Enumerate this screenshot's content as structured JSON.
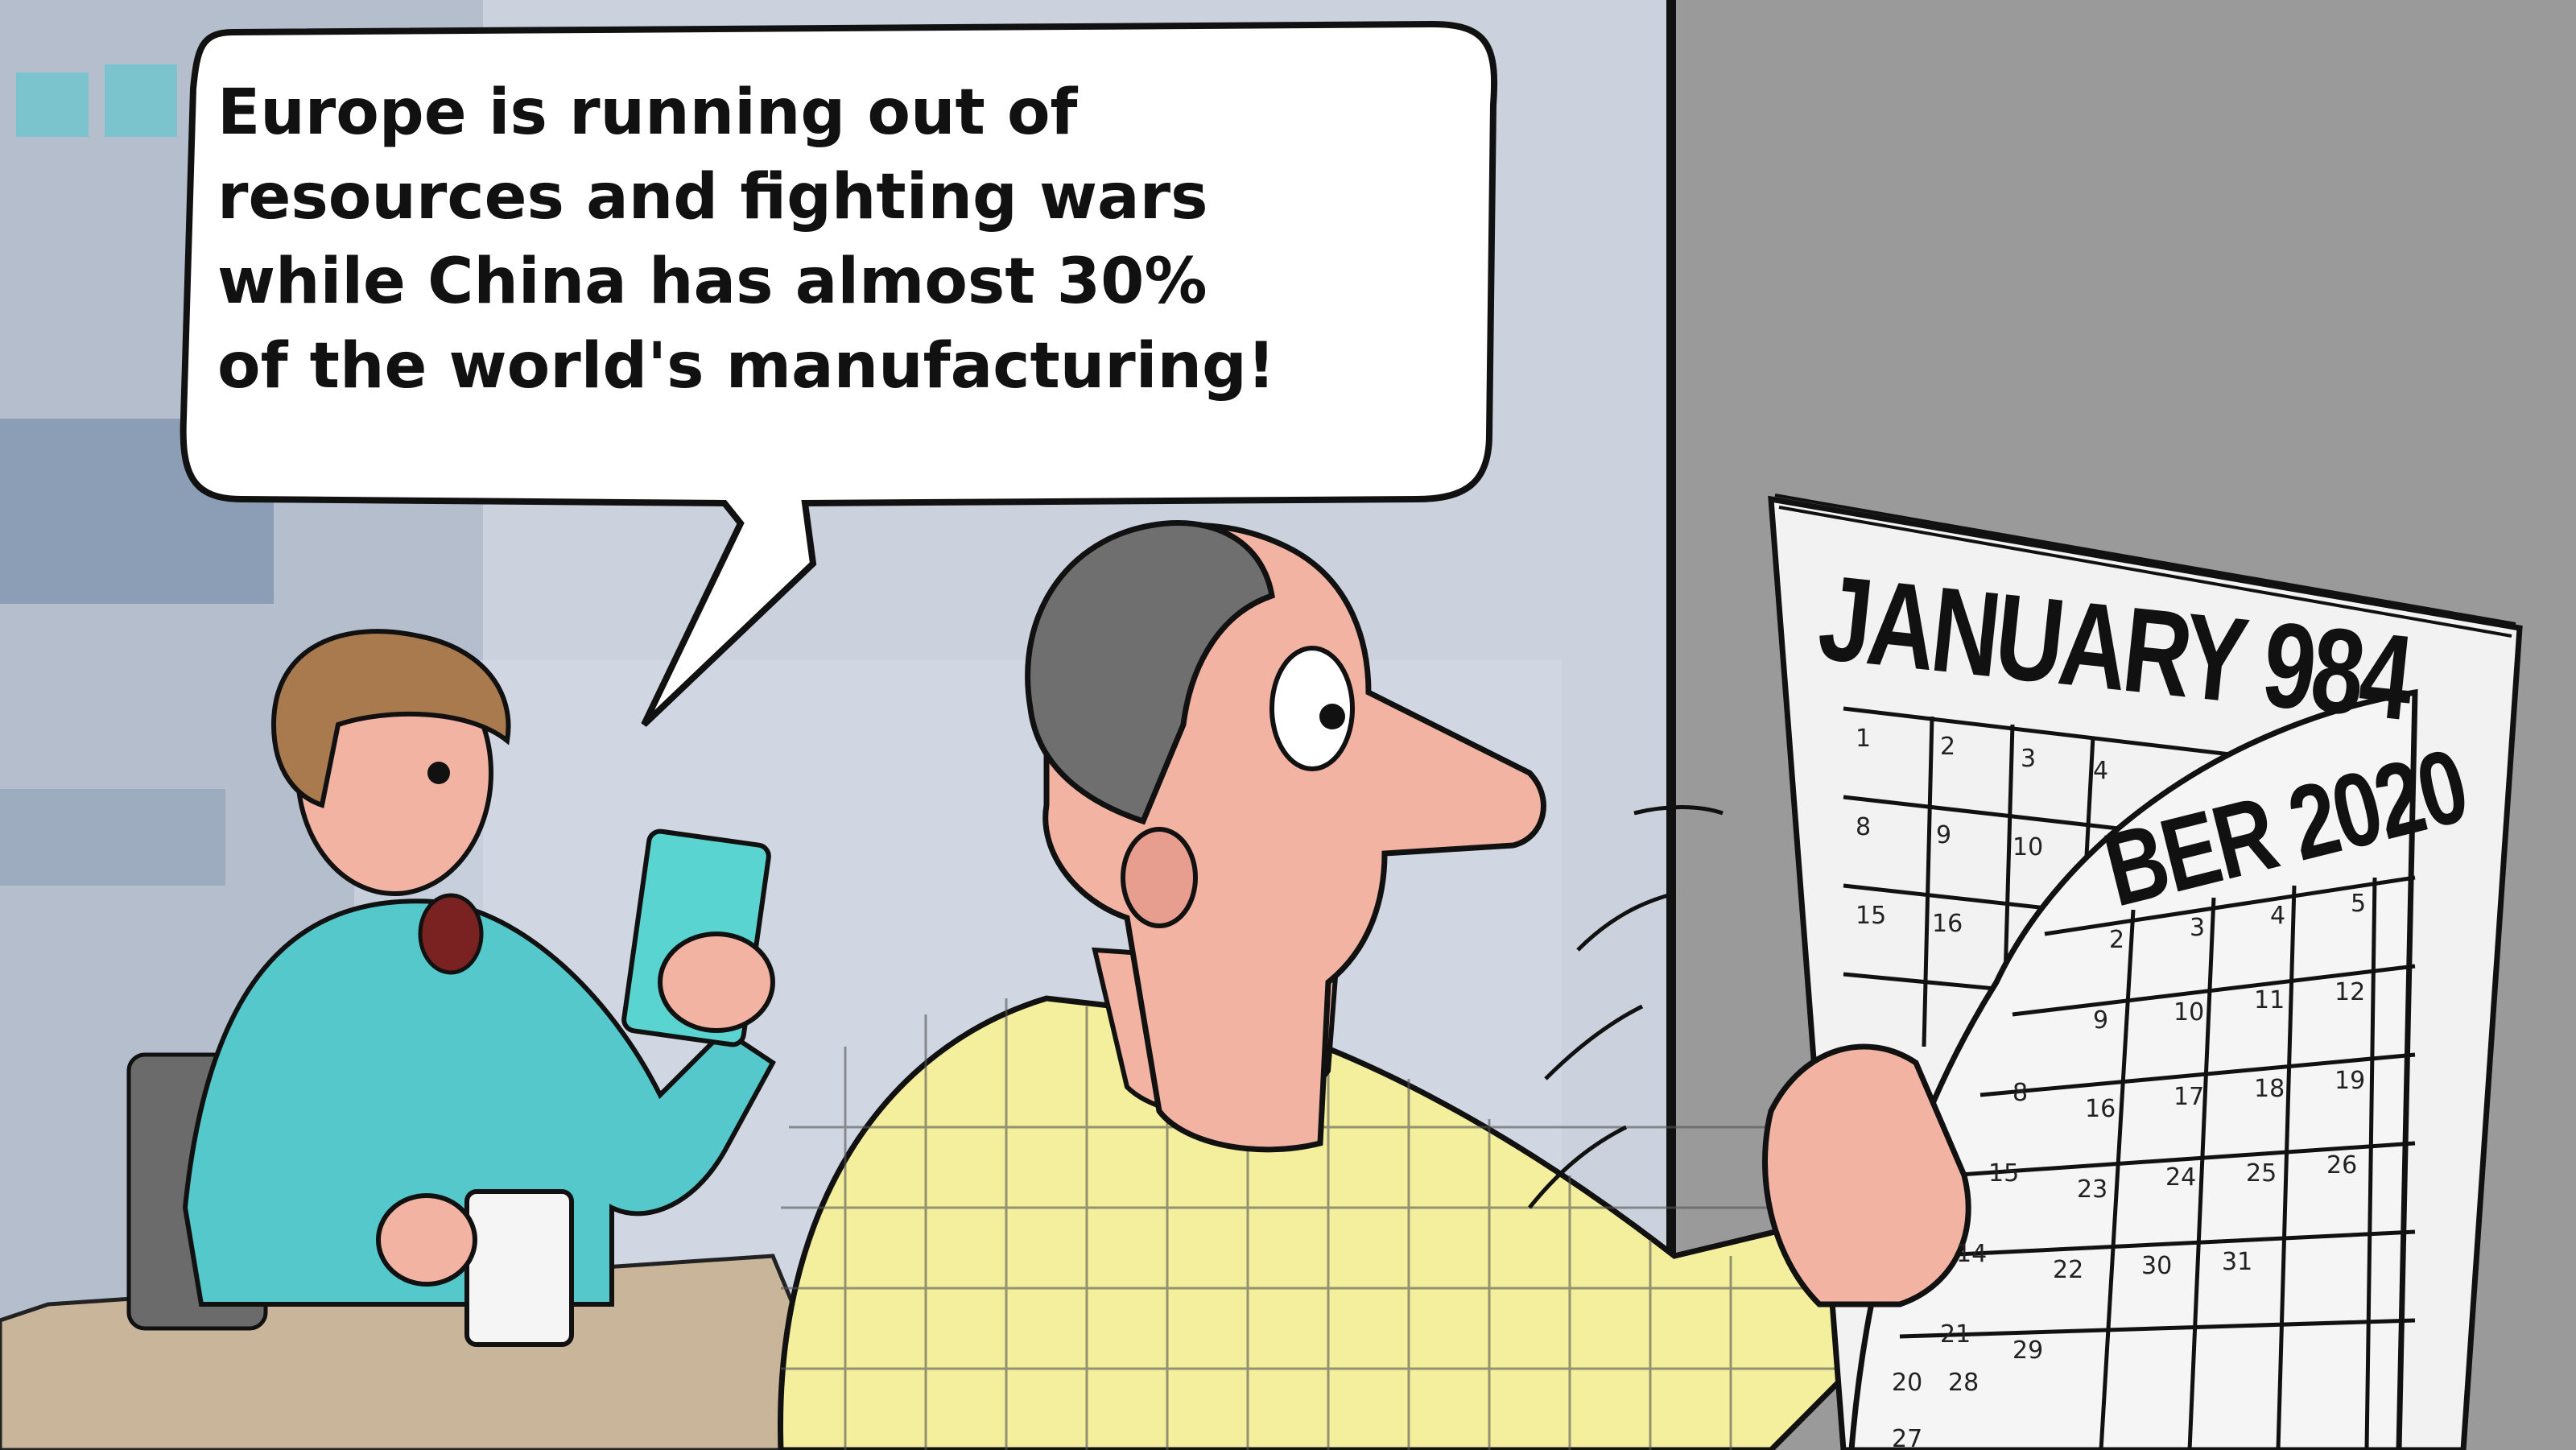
{
  "speech_bubble": {
    "lines": [
      "Europe is running out of",
      "resources and fighting wars",
      "while China has almost 30%",
      "of the world's manufacturing!"
    ]
  },
  "calendar": {
    "top_page_title": "JANUARY 984",
    "under_page_title": "BER 2020",
    "top_page_days": [
      "1",
      "2",
      "3",
      "4",
      "8",
      "9",
      "10",
      "15",
      "16"
    ],
    "under_page_days": [
      "2",
      "3",
      "4",
      "5",
      "9",
      "10",
      "11",
      "12",
      "8",
      "16",
      "17",
      "18",
      "19",
      "15",
      "23",
      "24",
      "25",
      "26",
      "14",
      "22",
      "30",
      "31",
      "21",
      "29",
      "20",
      "28",
      "27"
    ]
  },
  "colors": {
    "wall": "#c8cfdc",
    "right_wall": "#8f8f8f",
    "shirt_man": "#f3ef9c",
    "shirt_woman": "#55c8cc",
    "skin": "#f2b3a3",
    "hair_man": "#6f6f6f",
    "hair_woman": "#a87a4e",
    "phone": "#5ad4d0"
  }
}
